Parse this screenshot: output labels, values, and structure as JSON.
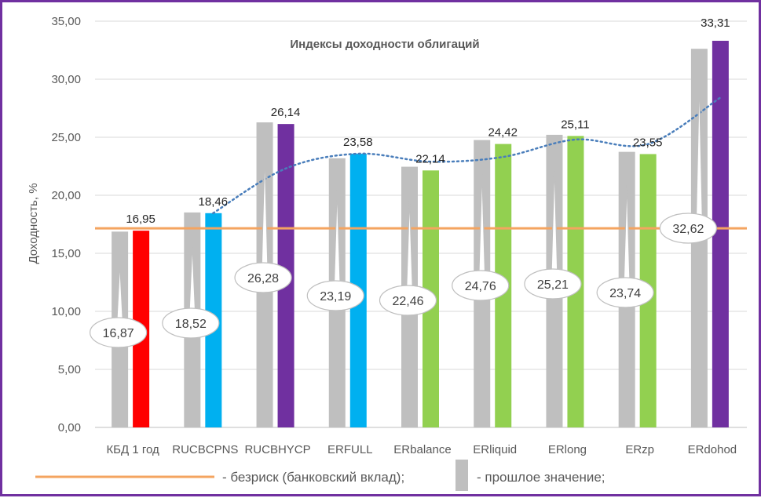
{
  "chart_data": {
    "type": "bar",
    "title": "Индексы доходности облигаций",
    "ylabel": "Доходность, %",
    "xlabel": "",
    "ylim": [
      0,
      35
    ],
    "yticks": [
      "0,00",
      "5,00",
      "10,00",
      "15,00",
      "20,00",
      "25,00",
      "30,00",
      "35,00"
    ],
    "grid": true,
    "categories": [
      "КБД 1 год",
      "RUCBCPNS",
      "RUCBHYCP",
      "ERFULL",
      "ERbalance",
      "ERliquid",
      "ERlong",
      "ERzp",
      "ERdohod"
    ],
    "series": [
      {
        "name": "прошлое значение",
        "color": "#bfbfbf",
        "values": [
          16.87,
          18.52,
          26.28,
          23.19,
          22.46,
          24.76,
          25.21,
          23.74,
          32.62
        ],
        "labels": [
          "16,87",
          "18,52",
          "26,28",
          "23,19",
          "22,46",
          "24,76",
          "25,21",
          "23,74",
          "32,62"
        ]
      },
      {
        "name": "",
        "colors": [
          "#ff0000",
          "#00b0f0",
          "#7030a0",
          "#00b0f0",
          "#92d050",
          "#92d050",
          "#92d050",
          "#92d050",
          "#7030a0"
        ],
        "values": [
          16.95,
          18.46,
          26.14,
          23.58,
          22.14,
          24.42,
          25.11,
          23.55,
          33.31
        ],
        "labels": [
          "16,95",
          "18,46",
          "26,14",
          "23,58",
          "22,14",
          "24,42",
          "25,11",
          "23,55",
          "33,31"
        ]
      }
    ],
    "reference_line": {
      "name": "безриск (банковский вклад)",
      "value": 17.15,
      "color": "#f4a460"
    },
    "trend": {
      "type": "dotted-smooth",
      "color": "#4a7ebb",
      "values": [
        18.46,
        22.3,
        23.58,
        22.9,
        23.3,
        24.8,
        24.4,
        28.4
      ]
    },
    "legend_position": "bottom"
  },
  "legend": {
    "riskfree_label": "- безриск (банковский вклад);",
    "previous_label": "- прошлое значение;"
  },
  "colors": {
    "frame": "#7030a0",
    "grid": "#d9d9d9",
    "axis_text": "#595959",
    "callout_border": "#bfbfbf"
  }
}
